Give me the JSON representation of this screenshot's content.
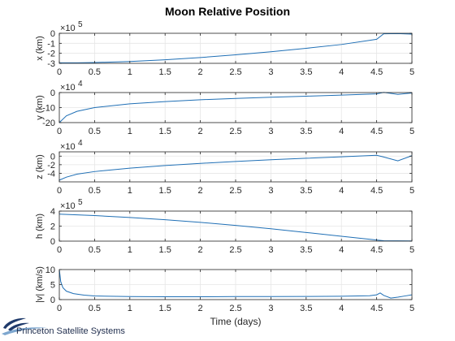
{
  "colors": {
    "line": "#1f6fb5",
    "grid": "#e6e6e6",
    "axis": "#262626",
    "logo": "#1f3a6b"
  },
  "chart_data": {
    "title": "Moon Relative Position",
    "xlabel": "Time (days)",
    "xlim": [
      0,
      5
    ],
    "xticks": [
      0,
      0.5,
      1,
      1.5,
      2,
      2.5,
      3,
      3.5,
      4,
      4.5,
      5
    ],
    "xtick_labels": [
      "0",
      "0.5",
      "1",
      "1.5",
      "2",
      "2.5",
      "3",
      "3.5",
      "4",
      "4.5",
      "5"
    ],
    "subplots": [
      {
        "type": "line",
        "ylabel": "x (km)",
        "multiplier": "×10",
        "exponent": "5",
        "ylim": [
          -3,
          0
        ],
        "yticks": [
          -3,
          -2,
          -1,
          0
        ],
        "ytick_labels": [
          "-3",
          "-2",
          "-1",
          "0"
        ],
        "grid": true,
        "x": [
          0,
          0.25,
          0.5,
          1,
          1.5,
          2,
          2.5,
          3,
          3.5,
          4,
          4.5,
          4.6,
          4.8,
          5
        ],
        "y": [
          -2.95,
          -2.95,
          -2.92,
          -2.82,
          -2.65,
          -2.42,
          -2.15,
          -1.84,
          -1.5,
          -1.12,
          -0.6,
          -0.05,
          -0.03,
          -0.08
        ]
      },
      {
        "type": "line",
        "ylabel": "y (km)",
        "multiplier": "×10",
        "exponent": "4",
        "ylim": [
          -20,
          0
        ],
        "yticks": [
          -20,
          -10,
          0
        ],
        "ytick_labels": [
          "-20",
          "-10",
          "0"
        ],
        "grid": true,
        "x": [
          0,
          0.1,
          0.25,
          0.5,
          1,
          1.5,
          2,
          2.5,
          3,
          3.5,
          4,
          4.5,
          4.6,
          4.8,
          5
        ],
        "y": [
          -20,
          -15.5,
          -12.5,
          -10,
          -7.5,
          -6,
          -4.8,
          -3.9,
          -3.1,
          -2.4,
          -1.7,
          -0.9,
          0.1,
          -1.2,
          -0.3
        ]
      },
      {
        "type": "line",
        "ylabel": "z (km)",
        "multiplier": "×10",
        "exponent": "4",
        "ylim": [
          -6,
          1
        ],
        "yticks": [
          -4,
          -2,
          0
        ],
        "ytick_labels": [
          "-4",
          "-2",
          "0"
        ],
        "grid": true,
        "x": [
          0,
          0.1,
          0.25,
          0.5,
          1,
          1.5,
          2,
          2.5,
          3,
          3.5,
          4,
          4.5,
          4.6,
          4.8,
          5
        ],
        "y": [
          -5.6,
          -4.9,
          -4.2,
          -3.6,
          -2.8,
          -2.2,
          -1.7,
          -1.25,
          -0.85,
          -0.5,
          -0.15,
          0.2,
          -0.2,
          -1.1,
          0.1
        ]
      },
      {
        "type": "line",
        "ylabel": "h (km)",
        "multiplier": "×10",
        "exponent": "5",
        "ylim": [
          0,
          4
        ],
        "yticks": [
          0,
          2,
          4
        ],
        "ytick_labels": [
          "0",
          "2",
          "4"
        ],
        "grid": true,
        "x": [
          0,
          0.5,
          1,
          1.5,
          2,
          2.5,
          3,
          3.5,
          4,
          4.5,
          4.6,
          5
        ],
        "y": [
          3.6,
          3.4,
          3.15,
          2.85,
          2.5,
          2.1,
          1.65,
          1.15,
          0.65,
          0.15,
          0.05,
          0.03
        ]
      },
      {
        "type": "line",
        "ylabel": "|v| (km/s)",
        "multiplier": "",
        "exponent": "",
        "ylim": [
          0,
          10
        ],
        "yticks": [
          0,
          5,
          10
        ],
        "ytick_labels": [
          "0",
          "5",
          "10"
        ],
        "grid": true,
        "x": [
          0,
          0.02,
          0.05,
          0.1,
          0.2,
          0.35,
          0.5,
          1,
          1.5,
          2,
          2.5,
          3,
          3.5,
          4,
          4.4,
          4.5,
          4.55,
          4.6,
          4.7,
          4.8,
          4.9,
          5
        ],
        "y": [
          10,
          6,
          4,
          2.8,
          2.0,
          1.5,
          1.2,
          1.0,
          0.95,
          0.95,
          1.0,
          1.0,
          1.05,
          1.1,
          1.3,
          1.6,
          2.2,
          1.4,
          0.5,
          0.8,
          1.2,
          1.6
        ]
      }
    ]
  },
  "logo": {
    "name": "Princeton Satellite Systems"
  }
}
